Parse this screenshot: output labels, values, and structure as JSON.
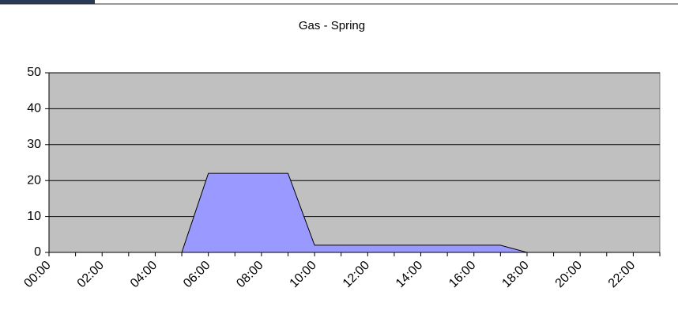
{
  "chart_data": {
    "type": "area",
    "title": "Gas - Spring",
    "categories": [
      "00:00",
      null,
      "02:00",
      null,
      "04:00",
      null,
      "06:00",
      null,
      "08:00",
      null,
      "10:00",
      null,
      "12:00",
      null,
      "14:00",
      null,
      "16:00",
      null,
      "18:00",
      null,
      "20:00",
      null,
      "22:00",
      null
    ],
    "series": [
      {
        "color": "#9999ff",
        "values": [
          0,
          0,
          0,
          0,
          0,
          0,
          22,
          22,
          22,
          22,
          2,
          2,
          2,
          2,
          2,
          2,
          2,
          2,
          0,
          0,
          0,
          0,
          0,
          0
        ]
      }
    ],
    "ylim": [
      0,
      50
    ],
    "yticks": [
      0,
      10,
      20,
      30,
      40,
      50
    ],
    "grid": true,
    "plot_background": "#c0c0c0"
  }
}
